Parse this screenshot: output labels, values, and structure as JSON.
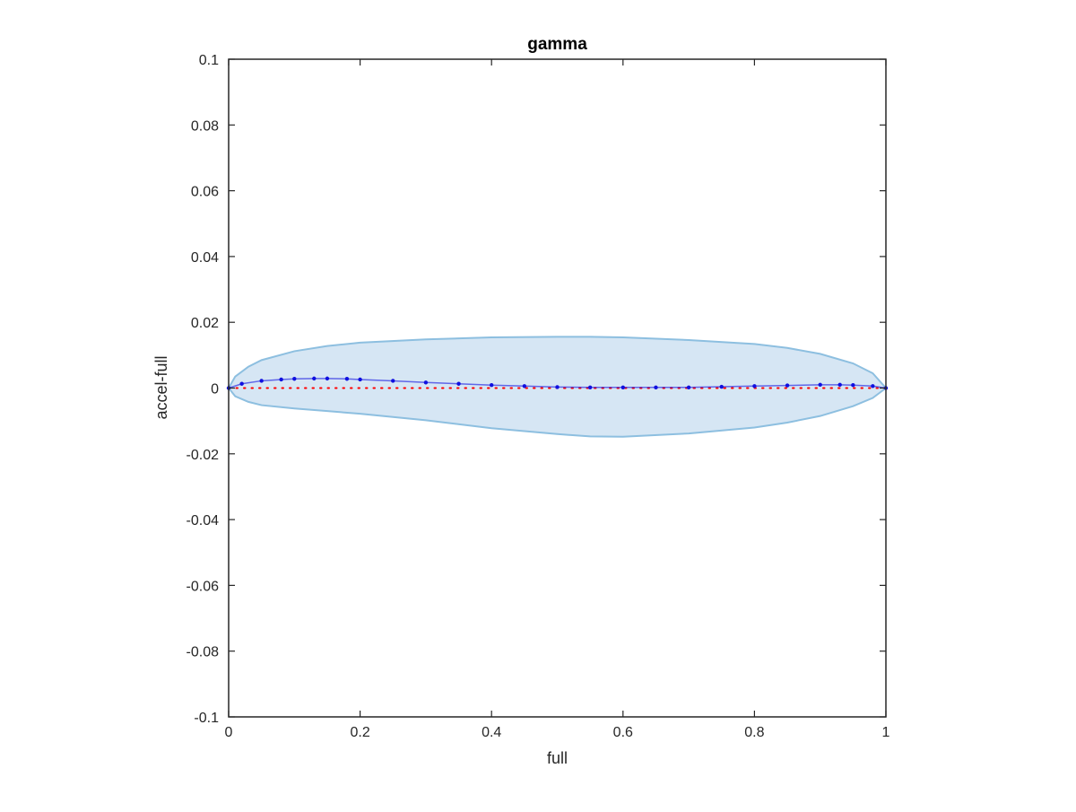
{
  "chart_data": {
    "type": "area",
    "title": "gamma",
    "xlabel": "full",
    "ylabel": "accel-full",
    "xlim": [
      0,
      1
    ],
    "ylim": [
      -0.1,
      0.1
    ],
    "x_ticks": [
      0,
      0.2,
      0.4,
      0.6,
      0.8,
      1
    ],
    "x_tick_labels": [
      "0",
      "0.2",
      "0.4",
      "0.6",
      "0.8",
      "1"
    ],
    "y_ticks": [
      -0.1,
      -0.08,
      -0.06,
      -0.04,
      -0.02,
      0,
      0.02,
      0.04,
      0.06,
      0.08,
      0.1
    ],
    "y_tick_labels": [
      "-0.1",
      "-0.08",
      "-0.06",
      "-0.04",
      "-0.02",
      "0",
      "0.02",
      "0.04",
      "0.06",
      "0.08",
      "0.1"
    ],
    "grid": false,
    "band": {
      "x": [
        0,
        0.01,
        0.03,
        0.05,
        0.1,
        0.15,
        0.2,
        0.3,
        0.4,
        0.5,
        0.55,
        0.6,
        0.7,
        0.8,
        0.85,
        0.9,
        0.95,
        0.98,
        1
      ],
      "upper": [
        0,
        0.0035,
        0.0065,
        0.0085,
        0.0112,
        0.0128,
        0.0138,
        0.0148,
        0.0154,
        0.0156,
        0.0156,
        0.0154,
        0.0146,
        0.0134,
        0.0122,
        0.0104,
        0.0075,
        0.0045,
        0
      ],
      "lower": [
        0,
        -0.0025,
        -0.0042,
        -0.0052,
        -0.0062,
        -0.007,
        -0.0078,
        -0.0098,
        -0.0122,
        -0.014,
        -0.0147,
        -0.0148,
        -0.0138,
        -0.012,
        -0.0105,
        -0.0085,
        -0.0055,
        -0.003,
        0
      ],
      "fill_color": "#d6e6f4",
      "edge_color": "#8dbfe0"
    },
    "series": [
      {
        "style": "dots",
        "color": "#1010e0",
        "x": [
          0,
          0.02,
          0.05,
          0.08,
          0.1,
          0.13,
          0.15,
          0.18,
          0.2,
          0.25,
          0.3,
          0.35,
          0.4,
          0.45,
          0.5,
          0.55,
          0.6,
          0.65,
          0.7,
          0.75,
          0.8,
          0.85,
          0.9,
          0.93,
          0.95,
          0.98,
          1
        ],
        "y": [
          0,
          0.0013,
          0.0022,
          0.0026,
          0.0028,
          0.0029,
          0.0029,
          0.0028,
          0.0026,
          0.0022,
          0.0017,
          0.0013,
          0.0009,
          0.0006,
          0.0003,
          0.0002,
          0.0002,
          0.0002,
          0.0002,
          0.0004,
          0.0006,
          0.0008,
          0.001,
          0.001,
          0.0009,
          0.0006,
          0
        ]
      },
      {
        "style": "dotted-line",
        "color": "#ff0000",
        "x": [
          0,
          1
        ],
        "y": [
          0,
          0
        ]
      }
    ]
  }
}
